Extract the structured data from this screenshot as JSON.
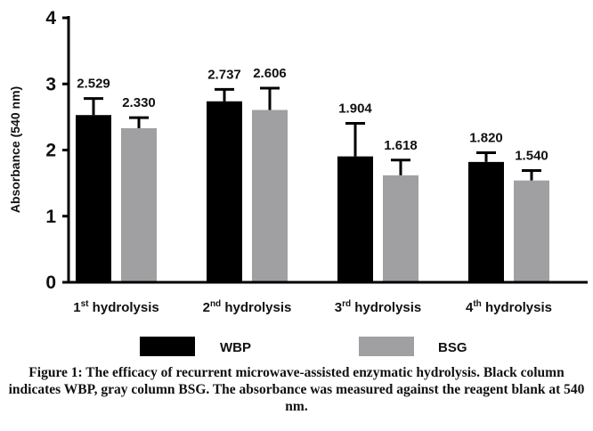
{
  "chart_data": {
    "type": "bar",
    "ylabel": "Absorbance (540 nm)",
    "ylim": [
      0,
      4
    ],
    "yticks": [
      "0",
      "1",
      "2",
      "3",
      "4"
    ],
    "categories": [
      {
        "base": "1",
        "sup": "st",
        "rest": " hydrolysis"
      },
      {
        "base": "2",
        "sup": "nd",
        "rest": " hydrolysis"
      },
      {
        "base": "3",
        "sup": "rd",
        "rest": " hydrolysis"
      },
      {
        "base": "4",
        "sup": "th",
        "rest": " hydrolysis"
      }
    ],
    "series": [
      {
        "name": "WBP",
        "color": "#000000",
        "values": [
          2.529,
          2.737,
          1.904,
          1.82
        ],
        "labels": [
          "2.529",
          "2.737",
          "1.904",
          "1.820"
        ],
        "errors": [
          0.25,
          0.18,
          0.5,
          0.14
        ]
      },
      {
        "name": "BSG",
        "color": "#a0a0a2",
        "values": [
          2.33,
          2.606,
          1.618,
          1.54
        ],
        "labels": [
          "2.330",
          "2.606",
          "1.618",
          "1.540"
        ],
        "errors": [
          0.16,
          0.33,
          0.23,
          0.15
        ]
      }
    ],
    "grid": false,
    "legend_position": "bottom"
  },
  "caption": "Figure 1: The efficacy of recurrent microwave-assisted enzymatic hydrolysis. Black column indicates WBP, gray column BSG. The absorbance was measured against the reagent blank at 540 nm."
}
